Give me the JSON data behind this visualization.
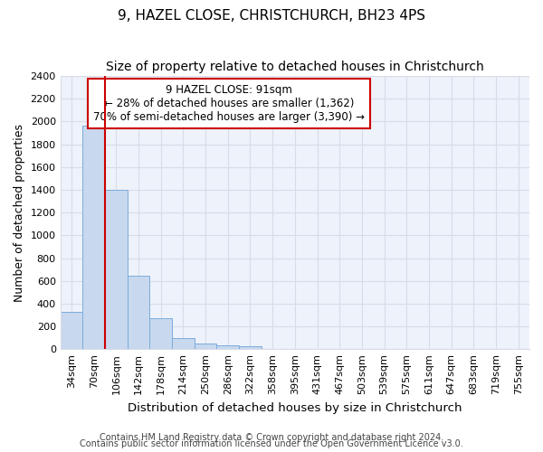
{
  "title1": "9, HAZEL CLOSE, CHRISTCHURCH, BH23 4PS",
  "title2": "Size of property relative to detached houses in Christchurch",
  "xlabel": "Distribution of detached houses by size in Christchurch",
  "ylabel": "Number of detached properties",
  "footer1": "Contains HM Land Registry data © Crown copyright and database right 2024.",
  "footer2": "Contains public sector information licensed under the Open Government Licence v3.0.",
  "bar_labels": [
    "34sqm",
    "70sqm",
    "106sqm",
    "142sqm",
    "178sqm",
    "214sqm",
    "250sqm",
    "286sqm",
    "322sqm",
    "358sqm",
    "395sqm",
    "431sqm",
    "467sqm",
    "503sqm",
    "539sqm",
    "575sqm",
    "611sqm",
    "647sqm",
    "683sqm",
    "719sqm",
    "755sqm"
  ],
  "bar_values": [
    325,
    1960,
    1400,
    645,
    270,
    100,
    47,
    38,
    25,
    0,
    0,
    0,
    0,
    0,
    0,
    0,
    0,
    0,
    0,
    0,
    0
  ],
  "bar_color": "#c8d8ee",
  "bar_edge_color": "#7aacdc",
  "ylim": [
    0,
    2400
  ],
  "yticks": [
    0,
    200,
    400,
    600,
    800,
    1000,
    1200,
    1400,
    1600,
    1800,
    2000,
    2200,
    2400
  ],
  "vline_x": 1.5,
  "vline_color": "#cc0000",
  "annotation_line1": "9 HAZEL CLOSE: 91sqm",
  "annotation_line2": "← 28% of detached houses are smaller (1,362)",
  "annotation_line3": "70% of semi-detached houses are larger (3,390) →",
  "annotation_box_color": "#ffffff",
  "annotation_box_edge_color": "#cc0000",
  "plot_bg_color": "#eef2fa",
  "fig_bg_color": "#ffffff",
  "grid_color": "#d8dce8",
  "title1_fontsize": 11,
  "title2_fontsize": 10,
  "xlabel_fontsize": 9.5,
  "ylabel_fontsize": 9,
  "annotation_fontsize": 8.5,
  "footer_fontsize": 7,
  "tick_fontsize": 8
}
